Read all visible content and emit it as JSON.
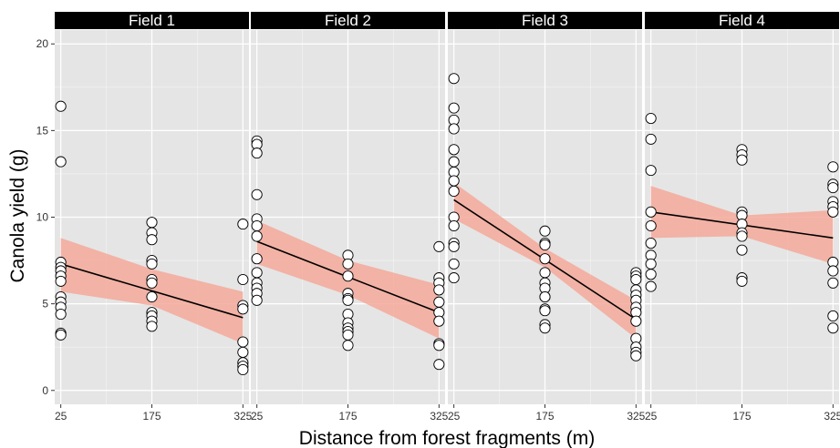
{
  "chart_data": {
    "type": "scatter",
    "xlabel": "Distance from forest fragments (m)",
    "ylabel": "Canola yield (g)",
    "x_ticks": [
      25,
      175,
      325
    ],
    "x_tick_labels": [
      "25",
      "175",
      "325"
    ],
    "y_ticks": [
      0,
      5,
      10,
      15,
      20
    ],
    "y_tick_labels": [
      "0",
      "5",
      "10",
      "15",
      "20"
    ],
    "xlim": [
      15,
      335
    ],
    "ylim": [
      -0.8,
      20.8
    ],
    "grid": true,
    "legend": "none",
    "colors": {
      "panel_bg": "#e5e5e5",
      "grid": "#ffffff",
      "strip_bg": "#000000",
      "ribbon": "#f4a99a",
      "line": "#000000",
      "point_fill": "#ffffff",
      "point_stroke": "#000000"
    },
    "panels": [
      {
        "label": "Field 1",
        "points": {
          "25": [
            16.4,
            13.2,
            7.4,
            7.1,
            6.9,
            6.6,
            6.3,
            5.4,
            5.1,
            4.8,
            4.4,
            3.3,
            3.2
          ],
          "175": [
            9.7,
            9.1,
            8.7,
            7.5,
            7.3,
            6.4,
            6.2,
            5.4,
            4.5,
            4.3,
            4.0,
            3.7
          ],
          "325": [
            9.6,
            6.4,
            4.9,
            4.7,
            2.8,
            2.2,
            1.6,
            1.4,
            1.2
          ]
        },
        "fit": {
          "y_start": 7.3,
          "y_end": 4.2
        },
        "ci_upper": [
          8.8,
          7.0,
          5.7
        ],
        "ci_lower": [
          5.7,
          4.9,
          2.7
        ]
      },
      {
        "label": "Field 2",
        "points": {
          "25": [
            14.4,
            14.2,
            13.7,
            11.3,
            9.9,
            9.5,
            8.9,
            7.6,
            6.8,
            6.2,
            5.9,
            5.6,
            5.2
          ],
          "175": [
            7.8,
            7.3,
            6.6,
            5.6,
            5.3,
            5.2,
            4.4,
            3.9,
            3.6,
            3.4,
            3.2,
            2.6
          ],
          "325": [
            8.3,
            6.5,
            6.2,
            5.8,
            5.1,
            4.5,
            4.0,
            2.7,
            2.6,
            1.5
          ]
        },
        "fit": {
          "y_start": 8.6,
          "y_end": 4.5
        },
        "ci_upper": [
          9.8,
          7.5,
          6.1
        ],
        "ci_lower": [
          7.3,
          5.5,
          3.0
        ]
      },
      {
        "label": "Field 3",
        "points": {
          "25": [
            18.0,
            16.3,
            15.6,
            15.1,
            13.9,
            13.2,
            12.6,
            12.1,
            11.5,
            10.0,
            9.5,
            8.5,
            8.3,
            7.3,
            6.5
          ],
          "175": [
            9.2,
            8.5,
            8.4,
            7.6,
            6.8,
            6.2,
            5.9,
            5.4,
            5.4,
            4.7,
            4.6,
            3.8,
            3.6
          ],
          "325": [
            6.8,
            6.6,
            6.4,
            5.8,
            5.5,
            5.2,
            4.8,
            4.5,
            4.0,
            3.0,
            2.5,
            2.2,
            2.0
          ]
        },
        "fit": {
          "y_start": 11.0,
          "y_end": 4.1
        },
        "ci_upper": [
          12.0,
          8.2,
          5.2
        ],
        "ci_lower": [
          9.9,
          7.1,
          3.0
        ]
      },
      {
        "label": "Field 4",
        "points": {
          "25": [
            15.7,
            14.5,
            12.7,
            10.3,
            9.5,
            8.5,
            7.8,
            7.3,
            6.7,
            6.0
          ],
          "175": [
            13.9,
            13.6,
            13.3,
            10.3,
            10.1,
            9.6,
            9.1,
            8.9,
            8.1,
            6.5,
            6.3
          ],
          "325": [
            12.9,
            11.9,
            11.7,
            10.9,
            10.6,
            10.3,
            7.4,
            6.9,
            6.2,
            4.3,
            3.6
          ]
        },
        "fit": {
          "y_start": 10.3,
          "y_end": 8.8
        },
        "ci_upper": [
          11.8,
          10.1,
          10.4
        ],
        "ci_lower": [
          8.8,
          8.9,
          7.3
        ]
      }
    ]
  }
}
